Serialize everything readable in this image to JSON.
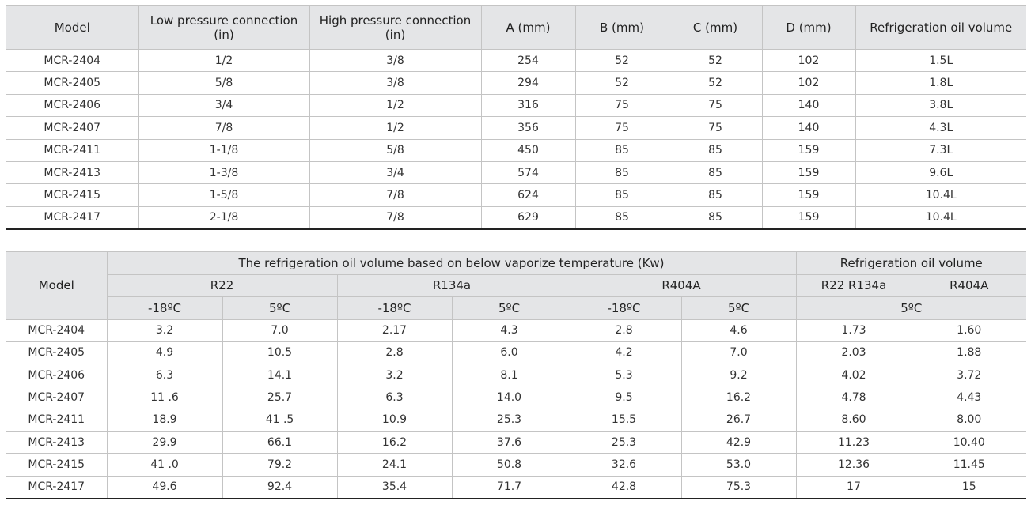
{
  "table1": {
    "header": [
      "Model",
      "Low pressure connection (in)",
      "High pressure connection (in)",
      "A (mm)",
      "B (mm)",
      "C (mm)",
      "D (mm)",
      "Refrigeration oil volume"
    ],
    "rows": [
      [
        "MCR-2404",
        "1/2",
        "3/8",
        "254",
        "52",
        "52",
        "102",
        "1.5L"
      ],
      [
        "MCR-2405",
        "5/8",
        "3/8",
        "294",
        "52",
        "52",
        "102",
        "1.8L"
      ],
      [
        "MCR-2406",
        "3/4",
        "1/2",
        "316",
        "75",
        "75",
        "140",
        "3.8L"
      ],
      [
        "MCR-2407",
        "7/8",
        "1/2",
        "356",
        "75",
        "75",
        "140",
        "4.3L"
      ],
      [
        "MCR-2411",
        "1-1/8",
        "5/8",
        "450",
        "85",
        "85",
        "159",
        "7.3L"
      ],
      [
        "MCR-2413",
        "1-3/8",
        "3/4",
        "574",
        "85",
        "85",
        "159",
        "9.6L"
      ],
      [
        "MCR-2415",
        "1-5/8",
        "7/8",
        "624",
        "85",
        "85",
        "159",
        "10.4L"
      ],
      [
        "MCR-2417",
        "2-1/8",
        "7/8",
        "629",
        "85",
        "85",
        "159",
        "10.4L"
      ]
    ]
  },
  "table2": {
    "header": {
      "model": "Model",
      "group": "The refrigeration oil volume based on below vaporize temperature (Kw)",
      "oil": "Refrigeration oil volume",
      "refrigerants": [
        "R22",
        "R134a",
        "R404A"
      ],
      "oil_refrigerants": [
        "R22 R134a",
        "R404A"
      ],
      "temps": [
        "-18ºC",
        "5ºC",
        "-18ºC",
        "5ºC",
        "-18ºC",
        "5ºC",
        "5ºC"
      ]
    },
    "rows": [
      [
        "MCR-2404",
        "3.2",
        "7.0",
        "2.17",
        "4.3",
        "2.8",
        "4.6",
        "1.73",
        "1.60"
      ],
      [
        "MCR-2405",
        "4.9",
        "10.5",
        "2.8",
        "6.0",
        "4.2",
        "7.0",
        "2.03",
        "1.88"
      ],
      [
        "MCR-2406",
        "6.3",
        "14.1",
        "3.2",
        "8.1",
        "5.3",
        "9.2",
        "4.02",
        "3.72"
      ],
      [
        "MCR-2407",
        "11 .6",
        "25.7",
        "6.3",
        "14.0",
        "9.5",
        "16.2",
        "4.78",
        "4.43"
      ],
      [
        "MCR-2411",
        "18.9",
        "41 .5",
        "10.9",
        "25.3",
        "15.5",
        "26.7",
        "8.60",
        "8.00"
      ],
      [
        "MCR-2413",
        "29.9",
        "66.1",
        "16.2",
        "37.6",
        "25.3",
        "42.9",
        "11.23",
        "10.40"
      ],
      [
        "MCR-2415",
        "41 .0",
        "79.2",
        "24.1",
        "50.8",
        "32.6",
        "53.0",
        "12.36",
        "11.45"
      ],
      [
        "MCR-2417",
        "49.6",
        "92.4",
        "35.4",
        "71.7",
        "42.8",
        "75.3",
        "17",
        "15"
      ]
    ]
  }
}
